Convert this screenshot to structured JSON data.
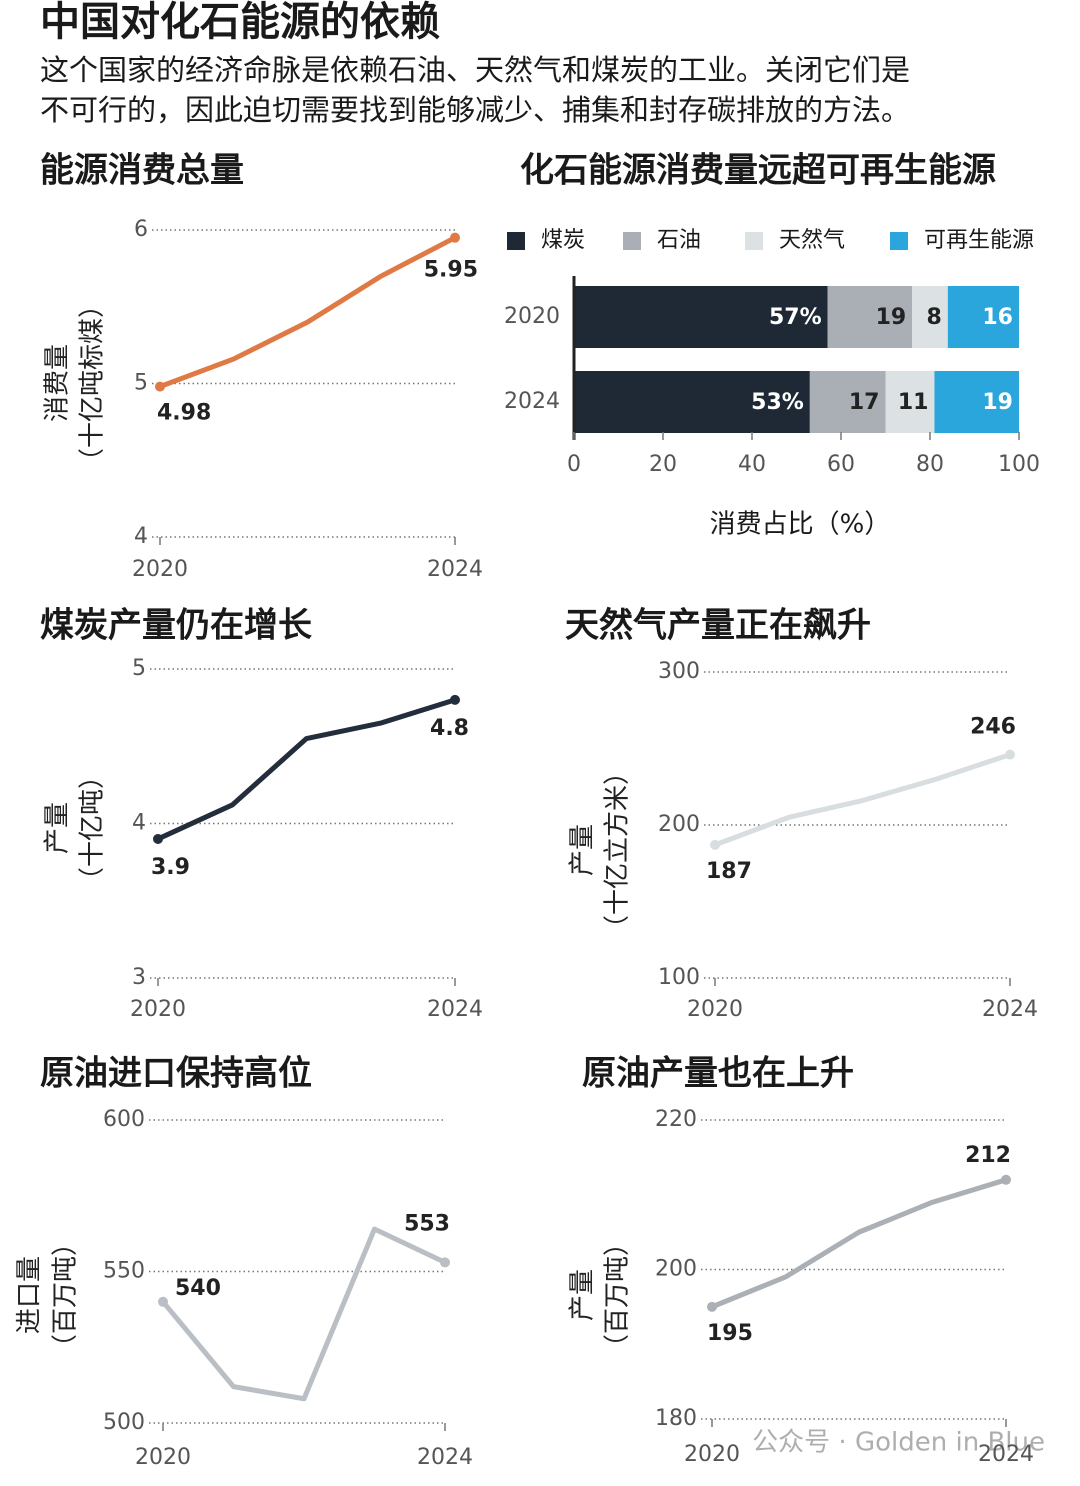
{
  "header": {
    "title": "中国对化石能源的依赖",
    "subtitle": [
      "这个国家的经济命脉是依赖石油、天然气和煤炭的工业。关闭它们是",
      "不可行的，因此迫切需要找到能够减少、捕集和封存碳排放的方法。"
    ]
  },
  "chart_data": [
    {
      "type": "line",
      "title": "能源消费总量",
      "ylabel": [
        "消费量",
        "（十亿吨标煤）"
      ],
      "x": [
        2020,
        2021,
        2022,
        2023,
        2024
      ],
      "values": [
        4.98,
        5.16,
        5.4,
        5.7,
        5.95
      ],
      "value_labels": [
        "4.98",
        null,
        null,
        null,
        "5.95"
      ],
      "color": "#e07a45",
      "xlim": [
        2020,
        2024
      ],
      "xticks": [
        2020,
        2024
      ],
      "ylim": [
        4,
        6
      ],
      "yticks": [
        4,
        5,
        6
      ],
      "grid": true
    },
    {
      "type": "stacked_bar",
      "orientation": "horizontal",
      "title": "化石能源消费量远超可再生能源",
      "xlabel": "消费占比（%）",
      "categories": [
        "2020",
        "2024"
      ],
      "series": [
        {
          "name": "煤炭",
          "color": "#1f2835",
          "values": [
            57,
            53
          ],
          "value_labels": [
            "57%",
            "53%"
          ]
        },
        {
          "name": "石油",
          "color": "#a9afb5",
          "values": [
            19,
            17
          ]
        },
        {
          "name": "天然气",
          "color": "#dce1e3",
          "values": [
            8,
            11
          ]
        },
        {
          "name": "可再生能源",
          "color": "#2aa6dc",
          "values": [
            16,
            19
          ]
        }
      ],
      "xlim": [
        0,
        100
      ],
      "xticks": [
        0,
        20,
        40,
        60,
        80,
        100
      ],
      "legend": "top"
    },
    {
      "type": "line",
      "title": "煤炭产量仍在增长",
      "ylabel": [
        "产量",
        "（十亿吨）"
      ],
      "x": [
        2020,
        2021,
        2022,
        2023,
        2024
      ],
      "values": [
        3.9,
        4.12,
        4.55,
        4.65,
        4.8
      ],
      "value_labels": [
        "3.9",
        null,
        null,
        null,
        "4.8"
      ],
      "color": "#232d3c",
      "xlim": [
        2020,
        2024
      ],
      "xticks": [
        2020,
        2024
      ],
      "ylim": [
        3,
        5
      ],
      "yticks": [
        3,
        4,
        5
      ],
      "grid": true
    },
    {
      "type": "line",
      "title": "天然气产量正在飙升",
      "ylabel": [
        "产量",
        "（十亿立方米）"
      ],
      "x": [
        2020,
        2021,
        2022,
        2023,
        2024
      ],
      "values": [
        187,
        205,
        216,
        230,
        246
      ],
      "value_labels": [
        "187",
        null,
        null,
        null,
        "246"
      ],
      "color": "#d8dde0",
      "xlim": [
        2020,
        2024
      ],
      "xticks": [
        2020,
        2024
      ],
      "ylim": [
        100,
        300
      ],
      "yticks": [
        100,
        200,
        300
      ],
      "grid": true
    },
    {
      "type": "line",
      "title": "原油进口保持高位",
      "ylabel": [
        "进口量",
        "（百万吨）"
      ],
      "x": [
        2020,
        2021,
        2022,
        2023,
        2024
      ],
      "values": [
        540,
        512,
        508,
        564,
        553
      ],
      "value_labels": [
        "540",
        null,
        null,
        null,
        "553"
      ],
      "color": "#b9bfc4",
      "xlim": [
        2020,
        2024
      ],
      "xticks": [
        2020,
        2024
      ],
      "ylim": [
        500,
        600
      ],
      "yticks": [
        500,
        550,
        600
      ],
      "grid": true
    },
    {
      "type": "line",
      "title": "原油产量也在上升",
      "ylabel": [
        "产量",
        "（百万吨）"
      ],
      "x": [
        2020,
        2021,
        2022,
        2023,
        2024
      ],
      "values": [
        195,
        199,
        205,
        209,
        212
      ],
      "value_labels": [
        "195",
        null,
        null,
        null,
        "212"
      ],
      "color": "#aab0b5",
      "xlim": [
        2020,
        2024
      ],
      "xticks": [
        2020,
        2024
      ],
      "ylim": [
        180,
        220
      ],
      "yticks": [
        180,
        200,
        220
      ],
      "grid": true
    }
  ],
  "watermark": "公众号 · Golden in Blue"
}
